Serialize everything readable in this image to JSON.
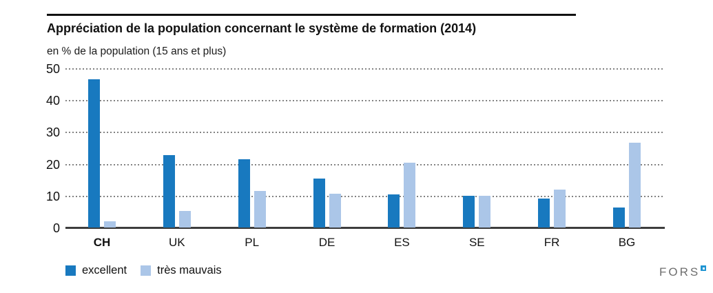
{
  "chart_data": {
    "type": "bar",
    "title": "Appréciation de la population concernant le système de formation (2014)",
    "subtitle": "en % de la population (15 ans et plus)",
    "categories": [
      "CH",
      "UK",
      "PL",
      "DE",
      "ES",
      "SE",
      "FR",
      "BG"
    ],
    "highlighted_category": "CH",
    "series": [
      {
        "name": "excellent",
        "color": "#1879bf",
        "values": [
          46.5,
          22.7,
          21.4,
          15.3,
          10.4,
          10.0,
          9.2,
          6.3
        ]
      },
      {
        "name": "très mauvais",
        "color": "#abc6e8",
        "values": [
          2.0,
          5.2,
          11.5,
          10.6,
          20.3,
          10.0,
          12.0,
          26.6
        ]
      }
    ],
    "ylim": [
      0,
      50
    ],
    "yticks": [
      0,
      10,
      20,
      30,
      40,
      50
    ],
    "grid": "horizontal-dotted",
    "legend_position": "bottom-left",
    "axis_colors": {
      "baseline": "#3d3d3d",
      "grid_dots": "#828282"
    }
  },
  "branding": {
    "logo_text": "FORS",
    "logo_mark_color": "#2095d2"
  }
}
